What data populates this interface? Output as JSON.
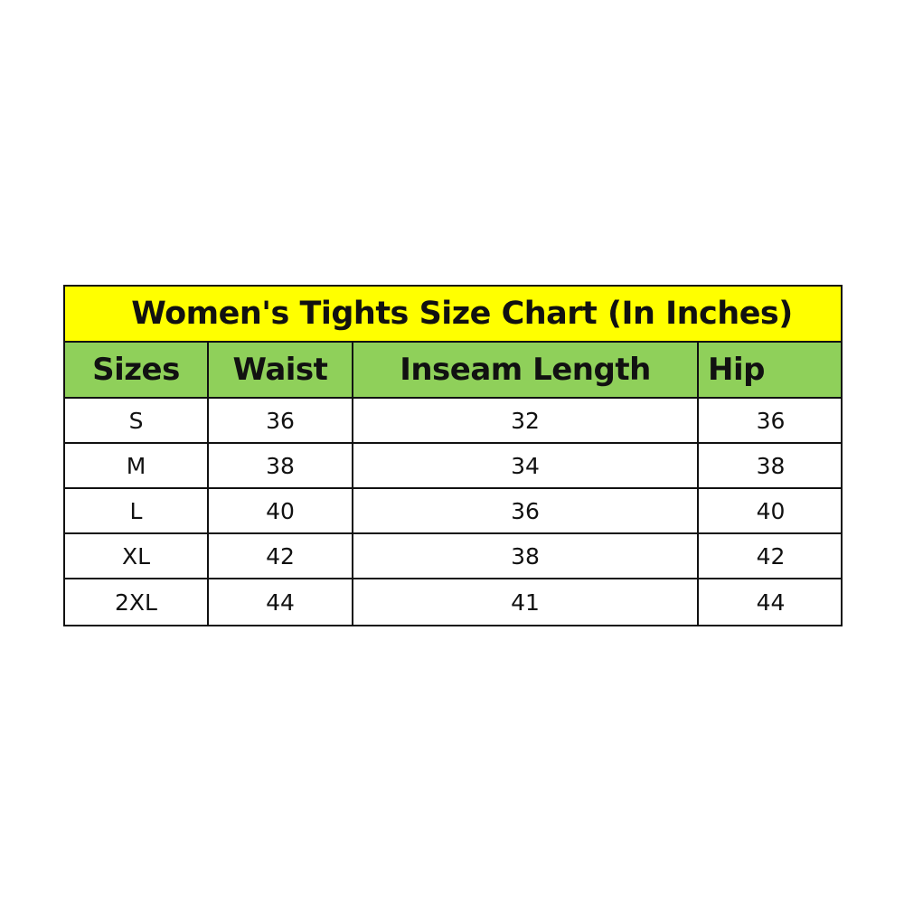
{
  "title": "Women's Tights Size Chart (In Inches)",
  "colors": {
    "title_bg": "#ffff00",
    "header_bg": "#8fd05a"
  },
  "chart_data": {
    "type": "table",
    "title": "Women's Tights Size Chart (In Inches)",
    "columns": [
      "Sizes",
      "Waist",
      "Inseam Length",
      "Hip"
    ],
    "rows": [
      [
        "S",
        "36",
        "32",
        "36"
      ],
      [
        "M",
        "38",
        "34",
        "38"
      ],
      [
        "L",
        "40",
        "36",
        "40"
      ],
      [
        "XL",
        "42",
        "38",
        "42"
      ],
      [
        "2XL",
        "44",
        "41",
        "44"
      ]
    ]
  }
}
